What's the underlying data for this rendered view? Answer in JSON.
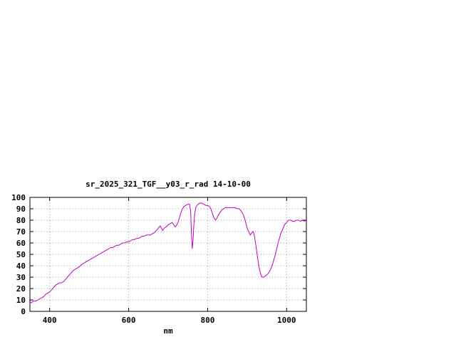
{
  "window": {
    "background": "#ffffff"
  },
  "chart_data": {
    "type": "line",
    "title": "sr_2025_321_TGF__y03_r_rad 14-10-00",
    "xlabel": "nm",
    "ylabel": "",
    "xlim": [
      350,
      1050
    ],
    "ylim": [
      0,
      100
    ],
    "x_ticks": [
      400,
      600,
      800,
      1000
    ],
    "y_ticks": [
      0,
      10,
      20,
      30,
      40,
      50,
      60,
      70,
      80,
      90,
      100
    ],
    "grid": true,
    "legend": "none",
    "line_color": "#c000c0",
    "border_color": "#000000",
    "grid_color": "#9a9a9a",
    "series": [
      {
        "name": "sr_2025_321_TGF__y03_r_rad",
        "points": [
          [
            350,
            7
          ],
          [
            355,
            8
          ],
          [
            360,
            9
          ],
          [
            365,
            9
          ],
          [
            370,
            10
          ],
          [
            375,
            11
          ],
          [
            380,
            12
          ],
          [
            385,
            13
          ],
          [
            390,
            15
          ],
          [
            395,
            16
          ],
          [
            400,
            17
          ],
          [
            405,
            19
          ],
          [
            410,
            21
          ],
          [
            415,
            23
          ],
          [
            420,
            24
          ],
          [
            425,
            25
          ],
          [
            430,
            25
          ],
          [
            435,
            26
          ],
          [
            440,
            28
          ],
          [
            445,
            30
          ],
          [
            450,
            32
          ],
          [
            455,
            34
          ],
          [
            460,
            36
          ],
          [
            465,
            37
          ],
          [
            470,
            38
          ],
          [
            475,
            39
          ],
          [
            480,
            41
          ],
          [
            485,
            42
          ],
          [
            490,
            43
          ],
          [
            495,
            44
          ],
          [
            500,
            45
          ],
          [
            505,
            46
          ],
          [
            510,
            47
          ],
          [
            515,
            48
          ],
          [
            520,
            49
          ],
          [
            525,
            50
          ],
          [
            530,
            51
          ],
          [
            535,
            52
          ],
          [
            540,
            53
          ],
          [
            545,
            54
          ],
          [
            550,
            55
          ],
          [
            555,
            56
          ],
          [
            560,
            56
          ],
          [
            565,
            57
          ],
          [
            570,
            58
          ],
          [
            575,
            58
          ],
          [
            580,
            59
          ],
          [
            585,
            60
          ],
          [
            590,
            60
          ],
          [
            595,
            61
          ],
          [
            600,
            61
          ],
          [
            605,
            62
          ],
          [
            610,
            63
          ],
          [
            615,
            63
          ],
          [
            620,
            64
          ],
          [
            625,
            64
          ],
          [
            630,
            65
          ],
          [
            635,
            66
          ],
          [
            640,
            66
          ],
          [
            645,
            67
          ],
          [
            650,
            67
          ],
          [
            655,
            67
          ],
          [
            660,
            68
          ],
          [
            665,
            69
          ],
          [
            670,
            71
          ],
          [
            675,
            73
          ],
          [
            680,
            75
          ],
          [
            683,
            73
          ],
          [
            686,
            71
          ],
          [
            690,
            73
          ],
          [
            695,
            74
          ],
          [
            700,
            76
          ],
          [
            705,
            77
          ],
          [
            710,
            78
          ],
          [
            714,
            76
          ],
          [
            718,
            74
          ],
          [
            722,
            76
          ],
          [
            726,
            79
          ],
          [
            730,
            84
          ],
          [
            735,
            89
          ],
          [
            740,
            92
          ],
          [
            745,
            93
          ],
          [
            750,
            94
          ],
          [
            754,
            94
          ],
          [
            757,
            88
          ],
          [
            759,
            68
          ],
          [
            761,
            55
          ],
          [
            763,
            62
          ],
          [
            765,
            75
          ],
          [
            767,
            85
          ],
          [
            770,
            91
          ],
          [
            773,
            93
          ],
          [
            776,
            94
          ],
          [
            780,
            95
          ],
          [
            785,
            95
          ],
          [
            790,
            94
          ],
          [
            795,
            93
          ],
          [
            800,
            93
          ],
          [
            805,
            92
          ],
          [
            808,
            90
          ],
          [
            812,
            86
          ],
          [
            816,
            82
          ],
          [
            820,
            80
          ],
          [
            824,
            82
          ],
          [
            828,
            85
          ],
          [
            832,
            87
          ],
          [
            836,
            89
          ],
          [
            840,
            90
          ],
          [
            845,
            91
          ],
          [
            850,
            91
          ],
          [
            855,
            91
          ],
          [
            860,
            91
          ],
          [
            865,
            91
          ],
          [
            870,
            91
          ],
          [
            875,
            90
          ],
          [
            880,
            90
          ],
          [
            885,
            88
          ],
          [
            890,
            85
          ],
          [
            895,
            80
          ],
          [
            900,
            73
          ],
          [
            905,
            69
          ],
          [
            908,
            67
          ],
          [
            912,
            69
          ],
          [
            915,
            70
          ],
          [
            918,
            67
          ],
          [
            922,
            58
          ],
          [
            926,
            48
          ],
          [
            930,
            39
          ],
          [
            934,
            33
          ],
          [
            938,
            30
          ],
          [
            942,
            30
          ],
          [
            946,
            31
          ],
          [
            950,
            32
          ],
          [
            955,
            34
          ],
          [
            960,
            37
          ],
          [
            965,
            42
          ],
          [
            970,
            48
          ],
          [
            975,
            55
          ],
          [
            980,
            62
          ],
          [
            985,
            68
          ],
          [
            990,
            72
          ],
          [
            995,
            76
          ],
          [
            1000,
            78
          ],
          [
            1005,
            80
          ],
          [
            1010,
            80
          ],
          [
            1015,
            79
          ],
          [
            1020,
            79
          ],
          [
            1025,
            80
          ],
          [
            1030,
            80
          ],
          [
            1035,
            79
          ],
          [
            1040,
            80
          ],
          [
            1045,
            79
          ],
          [
            1050,
            80
          ]
        ]
      }
    ]
  }
}
